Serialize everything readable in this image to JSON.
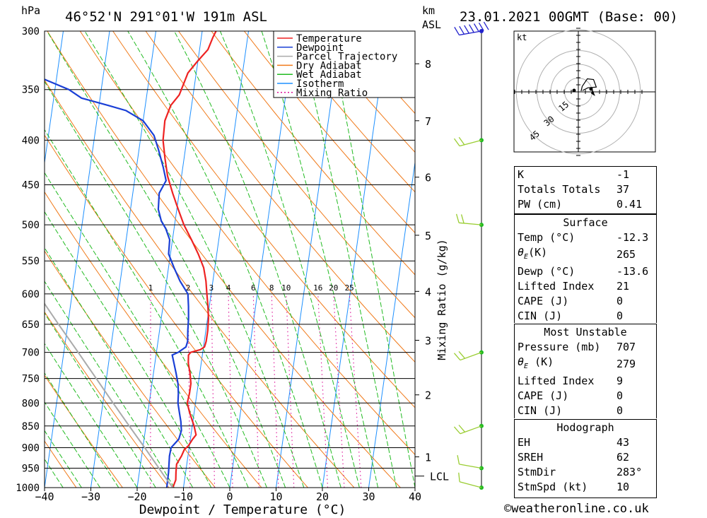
{
  "header": {
    "hpa_label": "hPa",
    "location": "46°52'N  291°01'W  191m  ASL",
    "km_label": "km",
    "asl_label": "ASL",
    "datetime": "23.01.2021  00GMT  (Base: 00)"
  },
  "chart_data": {
    "type": "line",
    "title": "46°52'N  291°01'W  191m  ASL",
    "xlabel": "Dewpoint / Temperature (°C)",
    "ylabel": "hPa",
    "x_ticks": [
      -40,
      -30,
      -20,
      -10,
      0,
      10,
      20,
      30,
      40
    ],
    "x_tick_labels": [
      "−40",
      "−30",
      "−20",
      "−10",
      "0",
      "10",
      "20",
      "30",
      "40"
    ],
    "pressure_levels": [
      300,
      350,
      400,
      450,
      500,
      550,
      600,
      650,
      700,
      750,
      800,
      850,
      900,
      950,
      1000
    ],
    "xlim": [
      -40,
      40
    ],
    "ylim": [
      1000,
      300
    ],
    "y_scale": "log",
    "km_label": "km",
    "km_asl_label": "ASL",
    "km_ticks": [
      {
        "label": "1",
        "pressure": 922
      },
      {
        "label": "2",
        "pressure": 783
      },
      {
        "label": "3",
        "pressure": 678
      },
      {
        "label": "4",
        "pressure": 596
      },
      {
        "label": "5",
        "pressure": 514
      },
      {
        "label": "6",
        "pressure": 441
      },
      {
        "label": "7",
        "pressure": 380
      },
      {
        "label": "8",
        "pressure": 327
      }
    ],
    "lcl_pressure": 970,
    "lcl_label": "LCL",
    "mixing_ratio_axis_label": "Mixing Ratio (g/kg)",
    "mixing_ratio_values": [
      1,
      2,
      3,
      4,
      6,
      8,
      10,
      16,
      20,
      25
    ],
    "mixing_ratio_labels": [
      "1",
      "2",
      "3",
      "4",
      "6",
      "8",
      "10",
      "16",
      "20",
      "25"
    ],
    "series": [
      {
        "name": "Temperature",
        "color": "#ee2222",
        "points": [
          [
            1000,
            -12.3
          ],
          [
            980,
            -11.9
          ],
          [
            960,
            -12.1
          ],
          [
            940,
            -12.2
          ],
          [
            920,
            -11.4
          ],
          [
            905,
            -11.0
          ],
          [
            895,
            -10.2
          ],
          [
            880,
            -9.5
          ],
          [
            870,
            -8.9
          ],
          [
            850,
            -9.6
          ],
          [
            820,
            -11.0
          ],
          [
            800,
            -11.8
          ],
          [
            780,
            -11.6
          ],
          [
            760,
            -11.6
          ],
          [
            740,
            -12.1
          ],
          [
            720,
            -12.8
          ],
          [
            705,
            -13.0
          ],
          [
            700,
            -12.6
          ],
          [
            695,
            -10.6
          ],
          [
            690,
            -9.8
          ],
          [
            680,
            -9.6
          ],
          [
            660,
            -9.6
          ],
          [
            640,
            -9.8
          ],
          [
            620,
            -10.3
          ],
          [
            600,
            -10.9
          ],
          [
            580,
            -11.5
          ],
          [
            560,
            -12.4
          ],
          [
            540,
            -14.0
          ],
          [
            520,
            -15.9
          ],
          [
            500,
            -18.0
          ],
          [
            480,
            -19.7
          ],
          [
            460,
            -21.4
          ],
          [
            440,
            -23.0
          ],
          [
            420,
            -24.1
          ],
          [
            400,
            -25.1
          ],
          [
            380,
            -25.3
          ],
          [
            365,
            -24.5
          ],
          [
            355,
            -23.0
          ],
          [
            345,
            -22.4
          ],
          [
            335,
            -21.8
          ],
          [
            325,
            -20.1
          ],
          [
            315,
            -18.2
          ],
          [
            305,
            -17.5
          ],
          [
            300,
            -17.0
          ]
        ]
      },
      {
        "name": "Dewpoint",
        "color": "#1a3fd6",
        "points": [
          [
            1000,
            -13.6
          ],
          [
            960,
            -13.7
          ],
          [
            920,
            -14.0
          ],
          [
            900,
            -13.9
          ],
          [
            880,
            -12.5
          ],
          [
            860,
            -12.2
          ],
          [
            840,
            -12.6
          ],
          [
            820,
            -13.2
          ],
          [
            800,
            -13.8
          ],
          [
            780,
            -14.0
          ],
          [
            760,
            -14.4
          ],
          [
            740,
            -15.1
          ],
          [
            720,
            -15.9
          ],
          [
            705,
            -16.5
          ],
          [
            700,
            -15.3
          ],
          [
            690,
            -13.8
          ],
          [
            680,
            -13.6
          ],
          [
            660,
            -13.9
          ],
          [
            640,
            -14.1
          ],
          [
            620,
            -14.5
          ],
          [
            600,
            -15.0
          ],
          [
            580,
            -17.1
          ],
          [
            560,
            -18.8
          ],
          [
            540,
            -20.4
          ],
          [
            520,
            -20.6
          ],
          [
            505,
            -21.8
          ],
          [
            495,
            -23.0
          ],
          [
            480,
            -24.0
          ],
          [
            460,
            -24.3
          ],
          [
            445,
            -23.2
          ],
          [
            430,
            -24.2
          ],
          [
            410,
            -25.8
          ],
          [
            395,
            -27.2
          ],
          [
            380,
            -30.0
          ],
          [
            370,
            -34.0
          ],
          [
            365,
            -38.0
          ],
          [
            358,
            -44.0
          ],
          [
            350,
            -47.0
          ],
          [
            340,
            -53.0
          ],
          [
            330,
            -58.0
          ],
          [
            320,
            -58.5
          ],
          [
            310,
            -57.0
          ],
          [
            300,
            -57.0
          ]
        ]
      },
      {
        "name": "Parcel Trajectory",
        "color": "#aaaaaa",
        "points": [
          [
            1000,
            -12.3
          ],
          [
            970,
            -14.5
          ],
          [
            950,
            -15.9
          ],
          [
            900,
            -19.6
          ],
          [
            850,
            -23.6
          ],
          [
            800,
            -27.8
          ],
          [
            750,
            -32.2
          ],
          [
            700,
            -36.9
          ],
          [
            650,
            -42.0
          ],
          [
            600,
            -47.4
          ],
          [
            550,
            -53.3
          ],
          [
            500,
            -59.6
          ],
          [
            450,
            -66.5
          ],
          [
            400,
            -74.0
          ]
        ]
      }
    ],
    "wind_barbs": [
      {
        "pressure": 1000,
        "direction": 285,
        "speed_kt": 10
      },
      {
        "pressure": 950,
        "direction": 280,
        "speed_kt": 10
      },
      {
        "pressure": 850,
        "direction": 250,
        "speed_kt": 15
      },
      {
        "pressure": 700,
        "direction": 250,
        "speed_kt": 15
      },
      {
        "pressure": 500,
        "direction": 275,
        "speed_kt": 20
      },
      {
        "pressure": 400,
        "direction": 255,
        "speed_kt": 20
      },
      {
        "pressure": 300,
        "direction": 260,
        "speed_kt": 70
      }
    ],
    "legend_position": "top-right",
    "legend": [
      {
        "label": "Temperature",
        "color": "#ee2222",
        "style": "solid"
      },
      {
        "label": "Dewpoint",
        "color": "#1a3fd6",
        "style": "solid"
      },
      {
        "label": "Parcel Trajectory",
        "color": "#aaaaaa",
        "style": "solid"
      },
      {
        "label": "Dry Adiabat",
        "color": "#f07a1a",
        "style": "solid"
      },
      {
        "label": "Wet Adiabat",
        "color": "#22bb22",
        "style": "solid"
      },
      {
        "label": "Isotherm",
        "color": "#1e90ff",
        "style": "solid"
      },
      {
        "label": "Mixing Ratio",
        "color": "#dd1199",
        "style": "dotted"
      }
    ]
  },
  "hodograph": {
    "unit_label": "kt",
    "ring_labels": [
      "15",
      "30",
      "45"
    ],
    "ring_values": [
      15,
      30,
      45
    ],
    "trace": [
      [
        2,
        0.5
      ],
      [
        2.8,
        4
      ],
      [
        6.5,
        9.5
      ],
      [
        11,
        9
      ],
      [
        13,
        3.5
      ],
      [
        7,
        3
      ],
      [
        3,
        1
      ]
    ],
    "storm_motion": [
      5,
      -1
    ]
  },
  "indices": {
    "top": [
      {
        "label": "K",
        "value": "-1"
      },
      {
        "label": "Totals Totals",
        "value": "37"
      },
      {
        "label": "PW (cm)",
        "value": "0.41"
      }
    ],
    "surface_title": "Surface",
    "surface": [
      {
        "label": "Temp (°C)",
        "value": "-12.3"
      },
      {
        "label": "Dewp (°C)",
        "value": "-13.6"
      },
      {
        "label": "θE(K)",
        "value": "265"
      },
      {
        "label": "Lifted Index",
        "value": "21"
      },
      {
        "label": "CAPE (J)",
        "value": "0"
      },
      {
        "label": "CIN (J)",
        "value": "0"
      }
    ],
    "unstable_title": "Most Unstable",
    "unstable": [
      {
        "label": "Pressure (mb)",
        "value": "707"
      },
      {
        "label": "θE (K)",
        "value": "279"
      },
      {
        "label": "Lifted Index",
        "value": "9"
      },
      {
        "label": "CAPE (J)",
        "value": "0"
      },
      {
        "label": "CIN (J)",
        "value": "0"
      }
    ],
    "hodo_title": "Hodograph",
    "hodo": [
      {
        "label": "EH",
        "value": "43"
      },
      {
        "label": "SREH",
        "value": "62"
      },
      {
        "label": "StmDir",
        "value": "283°"
      },
      {
        "label": "StmSpd (kt)",
        "value": "10"
      }
    ]
  },
  "credit": "©weatheronline.co.uk"
}
